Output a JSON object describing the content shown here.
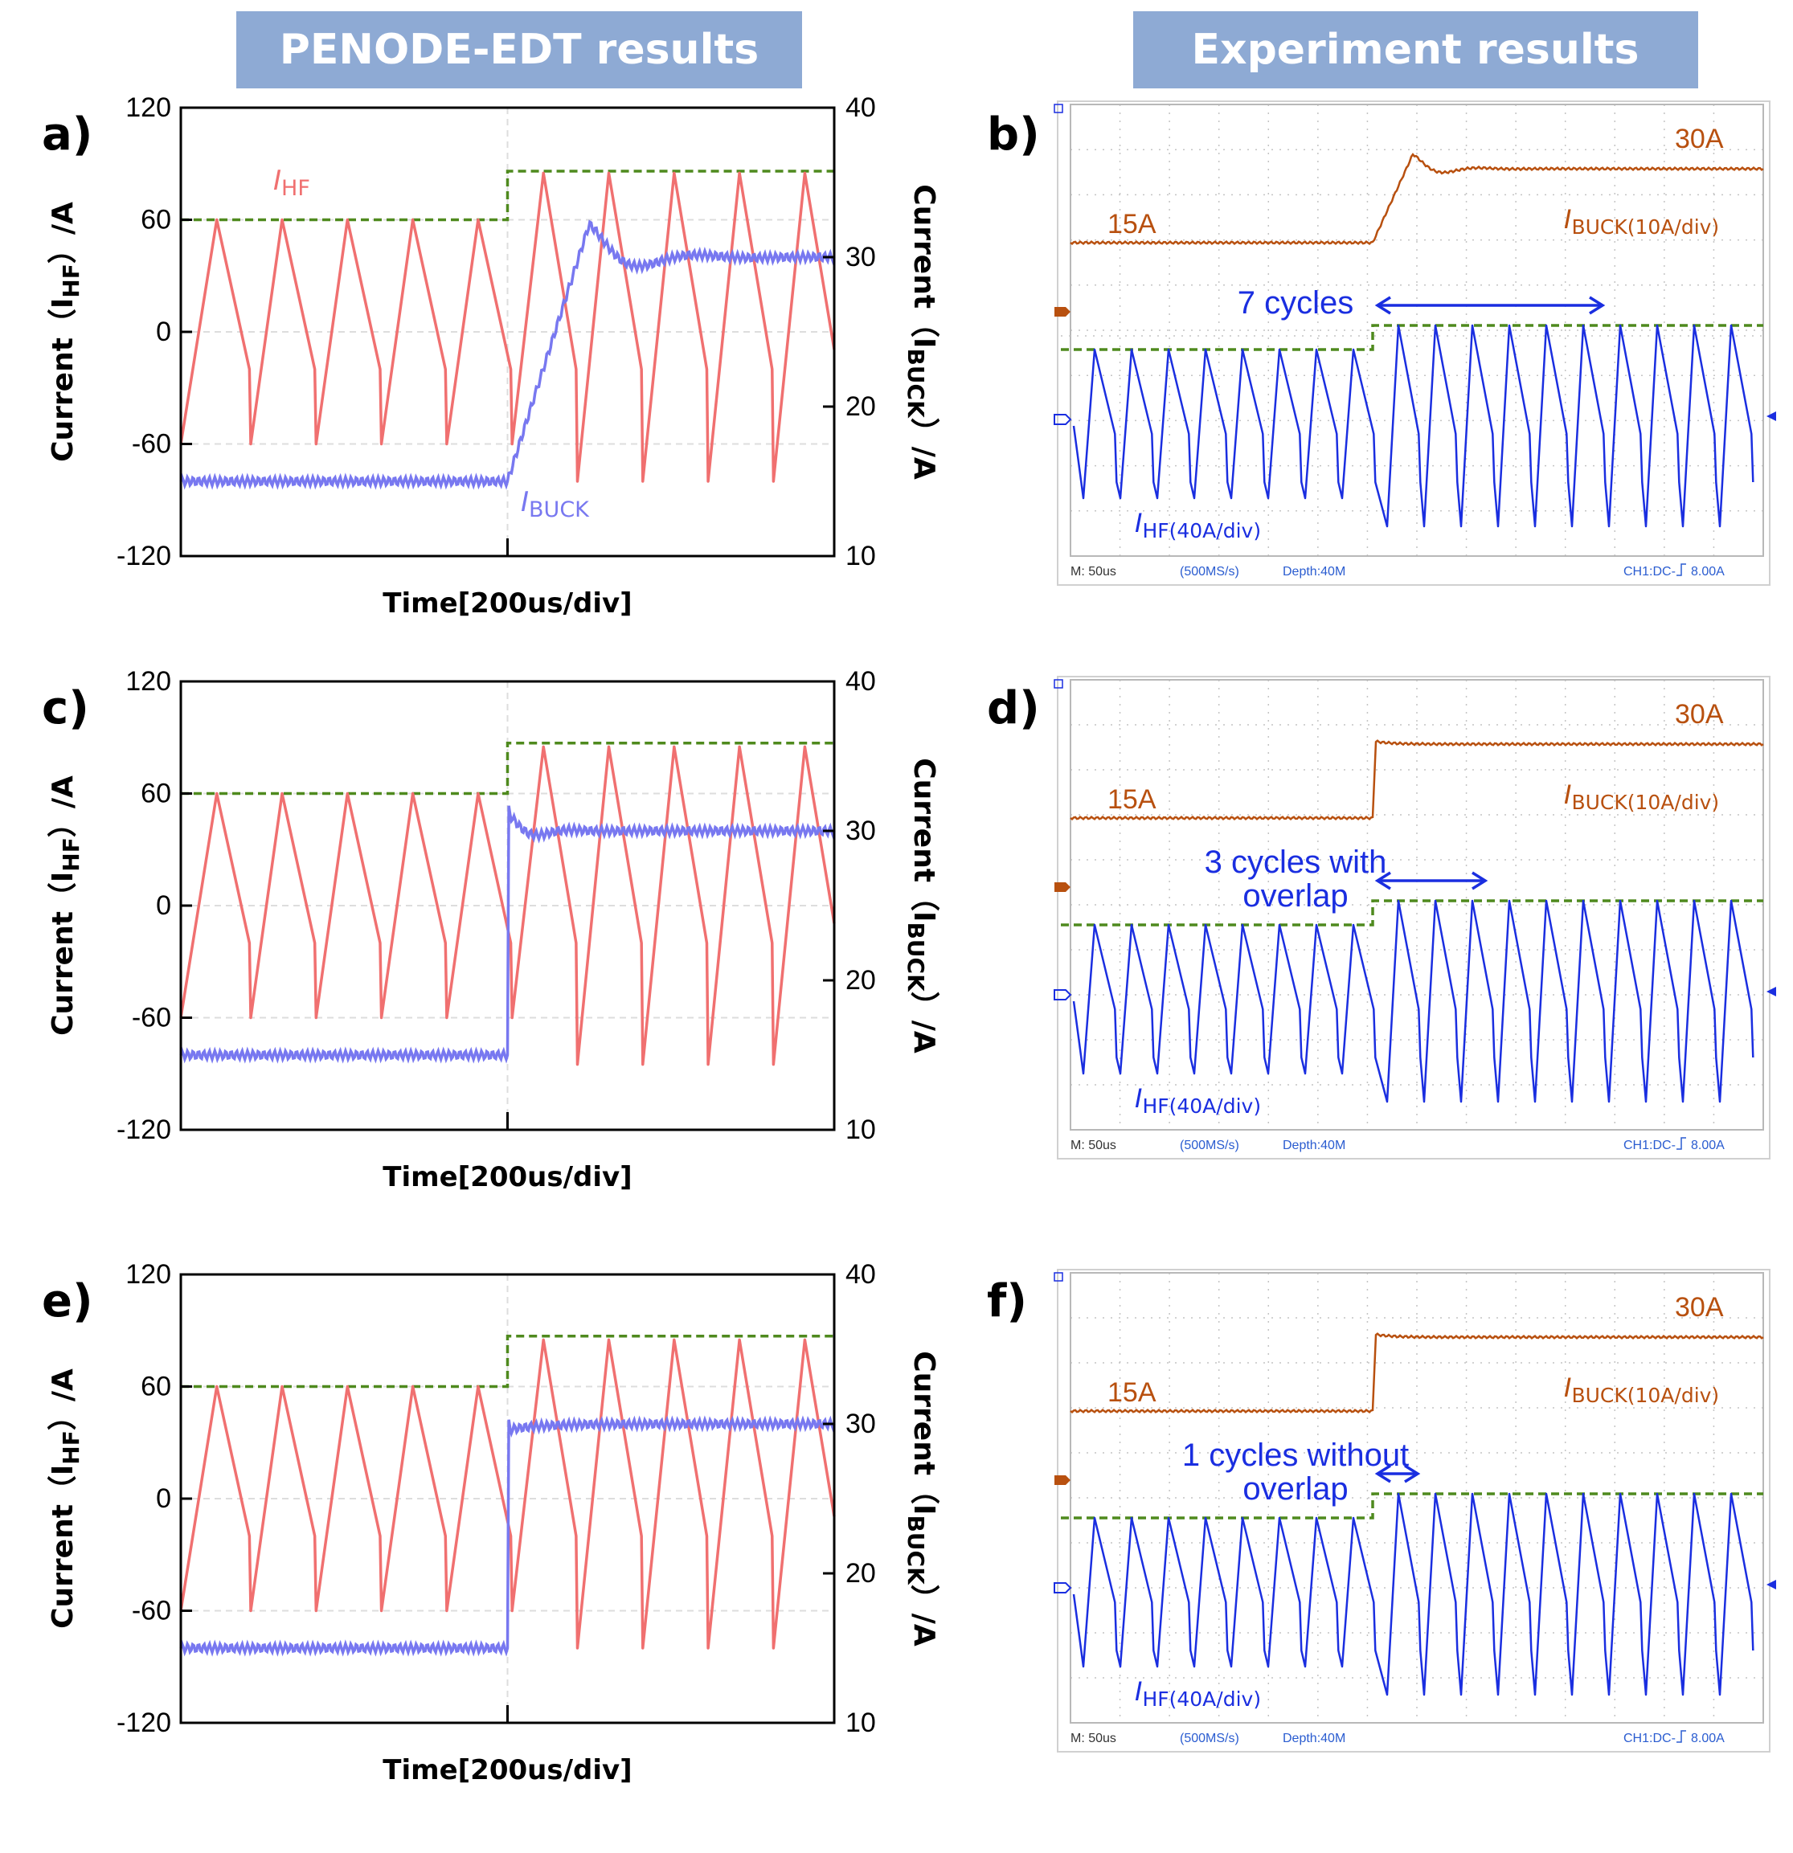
{
  "headers": {
    "left": "PENODE-EDT results",
    "right": "Experiment results"
  },
  "colors": {
    "header_bg": "#8eaad4",
    "header_text": "#ffffff",
    "ihf_sim": "#f07070",
    "ibuck_sim": "#7878f0",
    "ref": "#4f8a1e",
    "scope_buck": "#b8500f",
    "scope_ihf": "#1a2ee0",
    "scope_grid": "#c4c4c4",
    "scope_meta": "#2a5cd0"
  },
  "chart_data": [
    {
      "panel": "a)",
      "type": "line",
      "xlabel": "Time[200us/div]",
      "ylabel_left": {
        "main": "Current（I",
        "sub": "HF",
        "end": "）/A"
      },
      "ylabel_right": {
        "main": "Current（I",
        "sub": "BUCK",
        "end": "）/A"
      },
      "y_left_ticks": [
        "120",
        "60",
        "0",
        "-60",
        "-120"
      ],
      "y_right_ticks": [
        "40",
        "30",
        "20",
        "10"
      ],
      "ylim_left": [
        -120,
        120
      ],
      "ylim_right": [
        10,
        40
      ],
      "xlim_div": [
        0,
        10
      ],
      "step_time_div": 5,
      "series": [
        {
          "name": "I_HF",
          "label_main": "I",
          "label_sub": "HF",
          "axis": "left",
          "before": {
            "peak": 60,
            "valley": -60,
            "period_div": 1.0
          },
          "after": {
            "peak": 85,
            "valley": -80,
            "period_div": 1.0
          }
        },
        {
          "name": "I_BUCK",
          "label_main": "I",
          "label_sub": "BUCK",
          "axis": "right",
          "before": 15,
          "after": 30,
          "response": "slow ramp with overshoot to ~32 A, settles in ~7 cycles"
        },
        {
          "name": "reference",
          "axis": "left",
          "before": 60,
          "after": 86
        }
      ]
    },
    {
      "panel": "b)",
      "type": "line",
      "source": "oscilloscope",
      "labels": {
        "buck_low": "15A",
        "buck_high": "30A",
        "buck_name_main": "I",
        "buck_name_sub": "BUCK(10A/div)",
        "ihf_name_main": "I",
        "ihf_name_sub": "HF(40A/div)"
      },
      "annotation": [
        "7 cycles"
      ],
      "annotation_span_cycles": 7,
      "footer": {
        "time": "M: 50us",
        "rate": "(500MS/s)",
        "depth": "Depth:40M",
        "trigger": "CH1:DC-",
        "trigger_level": "8.00A"
      },
      "series": [
        {
          "name": "I_BUCK",
          "before": 15,
          "after": 30,
          "response": "ramp with overshoot"
        },
        {
          "name": "I_HF",
          "before_peak_div": 2.6,
          "after_peak_div": 3.0
        }
      ]
    },
    {
      "panel": "c)",
      "type": "line",
      "xlabel": "Time[200us/div]",
      "ylabel_left": {
        "main": "Current（I",
        "sub": "HF",
        "end": "）/A"
      },
      "ylabel_right": {
        "main": "Current（I",
        "sub": "BUCK",
        "end": "）/A"
      },
      "y_left_ticks": [
        "120",
        "60",
        "0",
        "-60",
        "-120"
      ],
      "y_right_ticks": [
        "40",
        "30",
        "20",
        "10"
      ],
      "ylim_left": [
        -120,
        120
      ],
      "ylim_right": [
        10,
        40
      ],
      "xlim_div": [
        0,
        10
      ],
      "step_time_div": 5,
      "series": [
        {
          "name": "I_HF",
          "axis": "left",
          "before": {
            "peak": 60,
            "valley": -60,
            "period_div": 1.0
          },
          "after": {
            "peak": 85,
            "valley": -85,
            "period_div": 1.0
          }
        },
        {
          "name": "I_BUCK",
          "axis": "right",
          "before": 15,
          "after": 30,
          "response": "near-immediate step with small overshoot"
        },
        {
          "name": "reference",
          "axis": "left",
          "before": 60,
          "after": 87
        }
      ]
    },
    {
      "panel": "d)",
      "type": "line",
      "source": "oscilloscope",
      "labels": {
        "buck_low": "15A",
        "buck_high": "30A",
        "buck_name_main": "I",
        "buck_name_sub": "BUCK(10A/div)",
        "ihf_name_main": "I",
        "ihf_name_sub": "HF(40A/div)"
      },
      "annotation": [
        "3 cycles with",
        "overlap"
      ],
      "annotation_span_cycles": 3,
      "footer": {
        "time": "M: 50us",
        "rate": "(500MS/s)",
        "depth": "Depth:40M",
        "trigger": "CH1:DC-",
        "trigger_level": "8.00A"
      },
      "series": [
        {
          "name": "I_BUCK",
          "before": 15,
          "after": 30,
          "response": "step"
        },
        {
          "name": "I_HF",
          "before_peak_div": 2.6,
          "after_peak_div": 3.0
        }
      ]
    },
    {
      "panel": "e)",
      "type": "line",
      "xlabel": "Time[200us/div]",
      "ylabel_left": {
        "main": "Current（I",
        "sub": "HF",
        "end": "）/A"
      },
      "ylabel_right": {
        "main": "Current（I",
        "sub": "BUCK",
        "end": "）/A"
      },
      "y_left_ticks": [
        "120",
        "60",
        "0",
        "-60",
        "-120"
      ],
      "y_right_ticks": [
        "40",
        "30",
        "20",
        "10"
      ],
      "ylim_left": [
        -120,
        120
      ],
      "ylim_right": [
        10,
        40
      ],
      "xlim_div": [
        0,
        10
      ],
      "step_time_div": 5,
      "series": [
        {
          "name": "I_HF",
          "axis": "left",
          "before": {
            "peak": 60,
            "valley": -60,
            "period_div": 1.0
          },
          "after": {
            "peak": 85,
            "valley": -80,
            "period_div": 1.0
          }
        },
        {
          "name": "I_BUCK",
          "axis": "right",
          "before": 15,
          "after": 30,
          "response": "step, no overshoot"
        },
        {
          "name": "reference",
          "axis": "left",
          "before": 60,
          "after": 87
        }
      ]
    },
    {
      "panel": "f)",
      "type": "line",
      "source": "oscilloscope",
      "labels": {
        "buck_low": "15A",
        "buck_high": "30A",
        "buck_name_main": "I",
        "buck_name_sub": "BUCK(10A/div)",
        "ihf_name_main": "I",
        "ihf_name_sub": "HF(40A/div)"
      },
      "annotation": [
        "1 cycles without",
        "overlap"
      ],
      "annotation_span_cycles": 1,
      "footer": {
        "time": "M: 50us",
        "rate": "(500MS/s)",
        "depth": "Depth:40M",
        "trigger": "CH1:DC-",
        "trigger_level": "8.00A"
      },
      "series": [
        {
          "name": "I_BUCK",
          "before": 15,
          "after": 30,
          "response": "step"
        },
        {
          "name": "I_HF",
          "before_peak_div": 2.6,
          "after_peak_div": 3.0
        }
      ]
    }
  ]
}
